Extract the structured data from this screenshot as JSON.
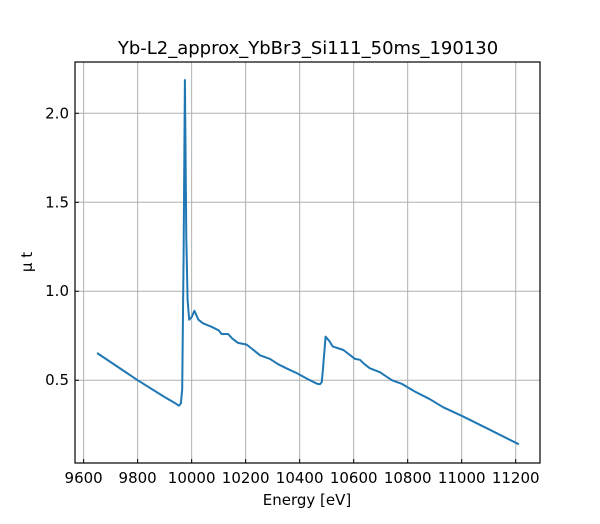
{
  "chart_data": {
    "type": "line",
    "title": "Yb-L2_approx_YbBr3_Si111_50ms_190130",
    "xlabel": "Energy [eV]",
    "ylabel": "μ t",
    "xlim": [
      9568,
      11290
    ],
    "ylim": [
      0.035,
      2.288
    ],
    "xticks": [
      9600,
      9800,
      10000,
      10200,
      10400,
      10600,
      10800,
      11000,
      11200
    ],
    "yticks": [
      0.5,
      1.0,
      1.5,
      2.0
    ],
    "ytick_labels": [
      "0.5",
      "1.0",
      "1.5",
      "2.0"
    ],
    "grid": true,
    "color": "#1f77b4",
    "series": [
      {
        "x": [
          9650,
          9800,
          9900,
          9940,
          9953,
          9960,
          9965,
          9970,
          9975,
          9980,
          9985,
          9991,
          10000,
          10010,
          10025,
          10042,
          10074,
          10100,
          10111,
          10135,
          10150,
          10172,
          10204,
          10225,
          10253,
          10290,
          10320,
          10351,
          10389,
          10438,
          10465,
          10475,
          10482,
          10487,
          10496,
          10510,
          10522,
          10562,
          10605,
          10623,
          10640,
          10660,
          10697,
          10741,
          10778,
          10827,
          10883,
          10932,
          11000,
          11100,
          11212
        ],
        "y": [
          0.653,
          0.5,
          0.405,
          0.37,
          0.357,
          0.37,
          0.45,
          1.2,
          2.187,
          1.3,
          0.95,
          0.84,
          0.855,
          0.89,
          0.84,
          0.82,
          0.8,
          0.78,
          0.76,
          0.76,
          0.735,
          0.71,
          0.7,
          0.675,
          0.64,
          0.62,
          0.59,
          0.567,
          0.54,
          0.5,
          0.48,
          0.478,
          0.49,
          0.58,
          0.745,
          0.72,
          0.69,
          0.67,
          0.62,
          0.615,
          0.59,
          0.567,
          0.545,
          0.5,
          0.48,
          0.436,
          0.393,
          0.348,
          0.3,
          0.225,
          0.14
        ]
      }
    ]
  }
}
